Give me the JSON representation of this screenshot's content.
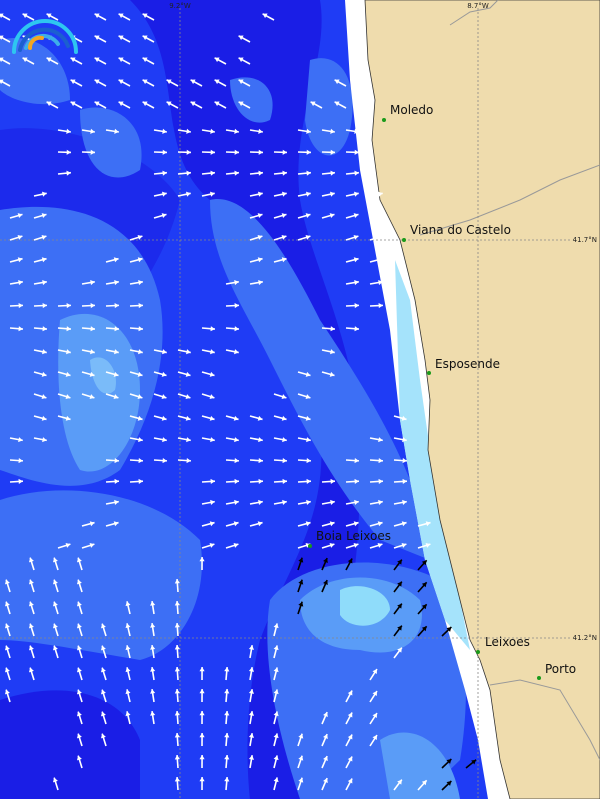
{
  "map": {
    "grid_labels": {
      "lon_left": "9.2°W",
      "lon_right": "8.7°W",
      "lat_top": "41.7°N",
      "lat_bottom": "41.2°N"
    },
    "places": [
      {
        "name": "Moledo"
      },
      {
        "name": "Viana do Castelo"
      },
      {
        "name": "Esposende"
      },
      {
        "name": "Boia Leixoes"
      },
      {
        "name": "Leixoes"
      },
      {
        "name": "Porto"
      }
    ],
    "colors": {
      "deep": "#1a1ee6",
      "mid": "#1f3cf5",
      "light": "#3d6ff5",
      "lighter": "#5a9cf7",
      "lightest": "#8fdcfa",
      "land": "#efdcad",
      "marker": "#1a9a1a"
    },
    "logo_icon": "rainbow-arc-logo"
  }
}
